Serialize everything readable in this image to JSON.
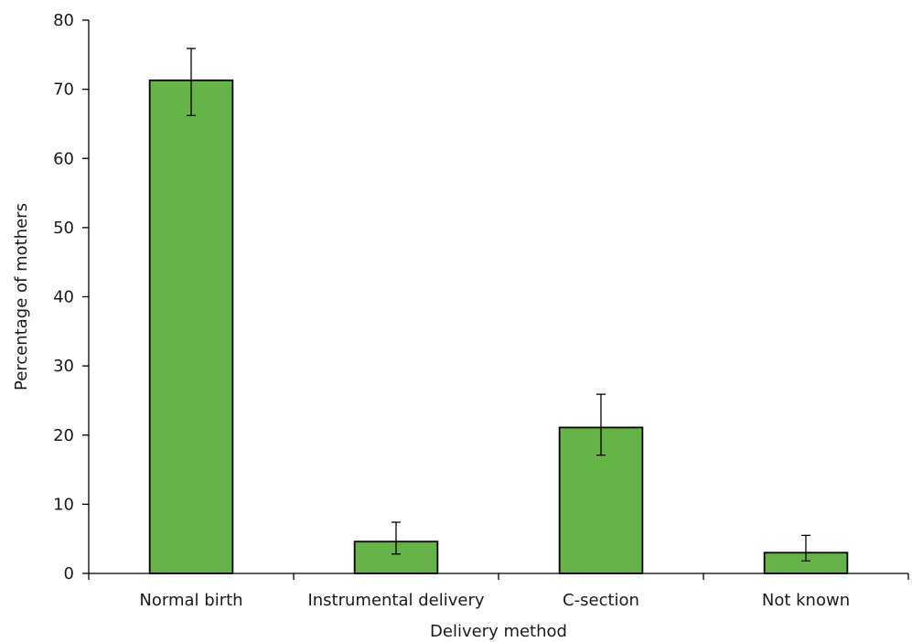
{
  "chart_data": {
    "type": "bar",
    "xlabel": "Delivery method",
    "ylabel": "Percentage of mothers",
    "ylim": [
      0,
      80
    ],
    "yticks": [
      0,
      10,
      20,
      30,
      40,
      50,
      60,
      70,
      80
    ],
    "categories": [
      "Normal birth",
      "Instrumental delivery",
      "C-section",
      "Not known"
    ],
    "values": [
      71.3,
      4.6,
      21.1,
      3.0
    ],
    "error_low": [
      66.2,
      2.8,
      17.1,
      1.8
    ],
    "error_high": [
      75.9,
      7.4,
      25.9,
      5.5
    ],
    "bar_color": "#66b347",
    "grid": false,
    "legend": "none"
  }
}
